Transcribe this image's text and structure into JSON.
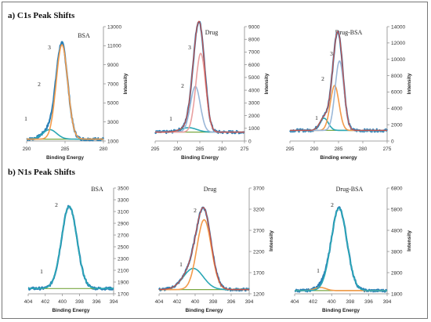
{
  "sections": [
    {
      "title": "a) C1s Peak Shifts"
    },
    {
      "title": "b) N1s Peak Shifts"
    }
  ],
  "colors": {
    "raw": "#2b7fb6",
    "envelope": "#c0504d",
    "peak1": "#2aa7b5",
    "peak2": "#f39a4a",
    "peak3": "#e9a0a0",
    "peak3b": "#9ab7d8",
    "baseline": "#7aa843"
  },
  "chart_data": [
    {
      "type": "line",
      "title": "BSA",
      "xlabel": "Binding Energy",
      "ylabel": "Intensity",
      "xlim": [
        290,
        280
      ],
      "xticks": [
        290,
        285,
        280
      ],
      "ylim": [
        1000,
        13000
      ],
      "yticks": [
        1000,
        3000,
        5000,
        7000,
        9000,
        11000,
        13000
      ],
      "peak_labels": [
        "1",
        "2",
        "3"
      ],
      "baseline": 1200,
      "components": [
        {
          "center": 287.0,
          "height": 1000,
          "width": 0.9,
          "color": "peak1"
        },
        {
          "center": 285.4,
          "height": 9900,
          "width": 0.75,
          "color": "peak2"
        }
      ],
      "has_envelope": false
    },
    {
      "type": "line",
      "title": "Drug",
      "xlabel": "Binding Energy",
      "ylabel": "Intensity",
      "xlim": [
        295,
        275
      ],
      "xticks": [
        295,
        290,
        285,
        280,
        275
      ],
      "ylim": [
        0,
        9000
      ],
      "yticks": [
        0,
        1000,
        2000,
        3000,
        4000,
        5000,
        6000,
        7000,
        8000,
        9000
      ],
      "peak_labels": [
        "1",
        "2",
        "3"
      ],
      "baseline": 700,
      "components": [
        {
          "center": 287.5,
          "height": 350,
          "width": 1.8,
          "color": "peak1"
        },
        {
          "center": 286.0,
          "height": 3600,
          "width": 1.1,
          "color": "peak3b"
        },
        {
          "center": 284.8,
          "height": 6200,
          "width": 1.1,
          "color": "peak3"
        }
      ],
      "has_envelope": true
    },
    {
      "type": "line",
      "title": "Drug-BSA",
      "xlabel": "Binding energy",
      "ylabel": "Intensity",
      "xlim": [
        295,
        275
      ],
      "xticks": [
        295,
        290,
        285,
        280,
        275
      ],
      "ylim": [
        0,
        14000
      ],
      "yticks": [
        0,
        2000,
        4000,
        6000,
        8000,
        10000,
        12000,
        14000
      ],
      "peak_labels": [
        "1",
        "2",
        "3"
      ],
      "baseline": 1300,
      "components": [
        {
          "center": 288.0,
          "height": 1500,
          "width": 0.9,
          "color": "peak1"
        },
        {
          "center": 285.8,
          "height": 5500,
          "width": 0.9,
          "color": "peak2"
        },
        {
          "center": 284.8,
          "height": 8500,
          "width": 0.9,
          "color": "peak3b"
        }
      ],
      "has_envelope": true
    },
    {
      "type": "line",
      "title": "BSA",
      "xlabel": "Binding Energy",
      "ylabel": "",
      "xlim": [
        404,
        394
      ],
      "xticks": [
        404,
        402,
        400,
        398,
        396,
        394
      ],
      "ylim": [
        1700,
        3500
      ],
      "yticks": [
        1700,
        1900,
        2100,
        2300,
        2500,
        2700,
        2900,
        3100,
        3300,
        3500
      ],
      "peak_labels": [
        "1",
        "2"
      ],
      "baseline": 1790,
      "components": [
        {
          "center": 399.2,
          "height": 1400,
          "width": 0.9,
          "color": "peak1"
        }
      ],
      "has_envelope": false
    },
    {
      "type": "line",
      "title": "Drug",
      "xlabel": "Binding Energy",
      "ylabel": "Intensity",
      "xlim": [
        404,
        394
      ],
      "xticks": [
        404,
        402,
        400,
        398,
        396,
        394
      ],
      "ylim": [
        1200,
        3700
      ],
      "yticks": [
        1200,
        1700,
        2200,
        2700,
        3200,
        3700
      ],
      "peak_labels": [
        "1",
        "2"
      ],
      "baseline": 1300,
      "components": [
        {
          "center": 400.2,
          "height": 500,
          "width": 1.1,
          "color": "peak1"
        },
        {
          "center": 399.0,
          "height": 1650,
          "width": 0.8,
          "color": "peak2"
        }
      ],
      "has_envelope": true
    },
    {
      "type": "line",
      "title": "Drug-BSA",
      "xlabel": "Binding Energy",
      "ylabel": "Intensity",
      "xlim": [
        404,
        394
      ],
      "xticks": [
        404,
        402,
        400,
        398,
        396,
        394
      ],
      "ylim": [
        1800,
        6800
      ],
      "yticks": [
        1800,
        2800,
        3800,
        4800,
        5800,
        6800
      ],
      "peak_labels": [
        "1",
        "2"
      ],
      "baseline": 1950,
      "components": [
        {
          "center": 401.2,
          "height": 150,
          "width": 0.6,
          "color": "peak2"
        },
        {
          "center": 399.2,
          "height": 3900,
          "width": 0.85,
          "color": "peak1"
        }
      ],
      "has_envelope": false
    }
  ]
}
